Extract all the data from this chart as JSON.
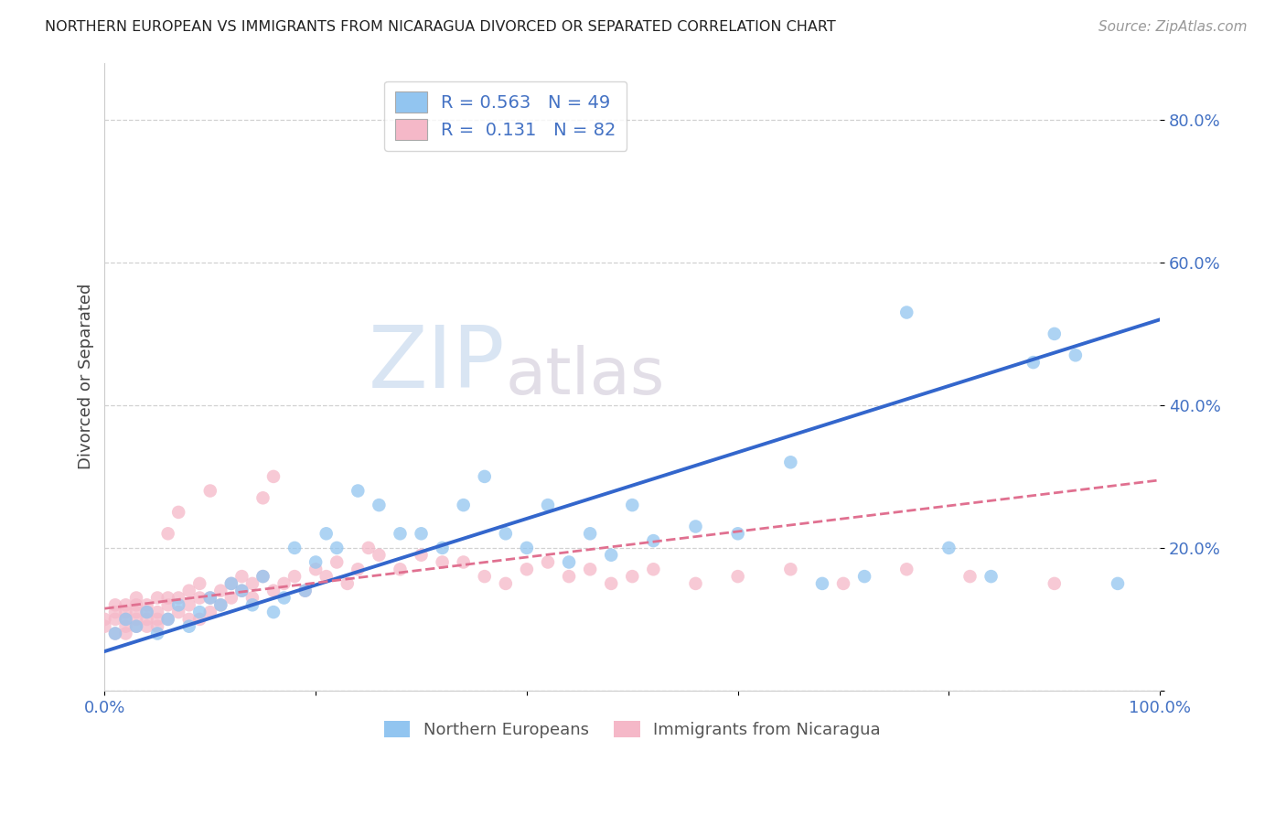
{
  "title": "NORTHERN EUROPEAN VS IMMIGRANTS FROM NICARAGUA DIVORCED OR SEPARATED CORRELATION CHART",
  "source": "Source: ZipAtlas.com",
  "ylabel": "Divorced or Separated",
  "xlim": [
    0,
    1.0
  ],
  "ylim": [
    0,
    0.88
  ],
  "x_tick_positions": [
    0.0,
    0.2,
    0.4,
    0.6,
    0.8,
    1.0
  ],
  "x_tick_labels": [
    "0.0%",
    "",
    "",
    "",
    "",
    "100.0%"
  ],
  "y_tick_positions": [
    0.0,
    0.2,
    0.4,
    0.6,
    0.8
  ],
  "y_tick_labels": [
    "",
    "20.0%",
    "40.0%",
    "60.0%",
    "80.0%"
  ],
  "blue_R": 0.563,
  "blue_N": 49,
  "pink_R": 0.131,
  "pink_N": 82,
  "blue_color": "#92C5F0",
  "pink_color": "#F5B8C8",
  "blue_line_color": "#3366CC",
  "pink_line_color": "#E07090",
  "tick_color": "#4472C4",
  "legend_text_color": "#4472C4",
  "watermark_zip_color": "#C8D8EE",
  "watermark_atlas_color": "#D4C8D4",
  "blue_line_start_y": 0.055,
  "blue_line_end_y": 0.52,
  "pink_line_start_y": 0.115,
  "pink_line_end_y": 0.295,
  "blue_x": [
    0.01,
    0.02,
    0.03,
    0.04,
    0.05,
    0.06,
    0.07,
    0.08,
    0.09,
    0.1,
    0.11,
    0.12,
    0.13,
    0.14,
    0.15,
    0.16,
    0.17,
    0.18,
    0.19,
    0.2,
    0.21,
    0.22,
    0.24,
    0.26,
    0.28,
    0.3,
    0.32,
    0.34,
    0.36,
    0.38,
    0.4,
    0.42,
    0.44,
    0.46,
    0.48,
    0.5,
    0.52,
    0.56,
    0.6,
    0.65,
    0.68,
    0.72,
    0.76,
    0.8,
    0.84,
    0.88,
    0.9,
    0.92,
    0.96
  ],
  "blue_y": [
    0.08,
    0.1,
    0.09,
    0.11,
    0.08,
    0.1,
    0.12,
    0.09,
    0.11,
    0.13,
    0.12,
    0.15,
    0.14,
    0.12,
    0.16,
    0.11,
    0.13,
    0.2,
    0.14,
    0.18,
    0.22,
    0.2,
    0.28,
    0.26,
    0.22,
    0.22,
    0.2,
    0.26,
    0.3,
    0.22,
    0.2,
    0.26,
    0.18,
    0.22,
    0.19,
    0.26,
    0.21,
    0.23,
    0.22,
    0.32,
    0.15,
    0.16,
    0.53,
    0.2,
    0.16,
    0.46,
    0.5,
    0.47,
    0.15
  ],
  "pink_x": [
    0.0,
    0.0,
    0.01,
    0.01,
    0.01,
    0.01,
    0.02,
    0.02,
    0.02,
    0.02,
    0.02,
    0.03,
    0.03,
    0.03,
    0.03,
    0.03,
    0.04,
    0.04,
    0.04,
    0.04,
    0.05,
    0.05,
    0.05,
    0.05,
    0.06,
    0.06,
    0.06,
    0.06,
    0.07,
    0.07,
    0.07,
    0.08,
    0.08,
    0.08,
    0.09,
    0.09,
    0.09,
    0.1,
    0.1,
    0.1,
    0.11,
    0.11,
    0.12,
    0.12,
    0.13,
    0.13,
    0.14,
    0.14,
    0.15,
    0.15,
    0.16,
    0.16,
    0.17,
    0.18,
    0.19,
    0.2,
    0.21,
    0.22,
    0.23,
    0.24,
    0.25,
    0.26,
    0.28,
    0.3,
    0.32,
    0.34,
    0.36,
    0.38,
    0.4,
    0.42,
    0.44,
    0.46,
    0.48,
    0.5,
    0.52,
    0.56,
    0.6,
    0.65,
    0.7,
    0.76,
    0.82,
    0.9
  ],
  "pink_y": [
    0.1,
    0.09,
    0.11,
    0.08,
    0.12,
    0.1,
    0.11,
    0.09,
    0.12,
    0.1,
    0.08,
    0.11,
    0.09,
    0.12,
    0.1,
    0.13,
    0.11,
    0.09,
    0.12,
    0.1,
    0.11,
    0.13,
    0.09,
    0.1,
    0.22,
    0.12,
    0.1,
    0.13,
    0.25,
    0.11,
    0.13,
    0.14,
    0.12,
    0.1,
    0.15,
    0.13,
    0.1,
    0.28,
    0.13,
    0.11,
    0.14,
    0.12,
    0.15,
    0.13,
    0.16,
    0.14,
    0.15,
    0.13,
    0.27,
    0.16,
    0.3,
    0.14,
    0.15,
    0.16,
    0.14,
    0.17,
    0.16,
    0.18,
    0.15,
    0.17,
    0.2,
    0.19,
    0.17,
    0.19,
    0.18,
    0.18,
    0.16,
    0.15,
    0.17,
    0.18,
    0.16,
    0.17,
    0.15,
    0.16,
    0.17,
    0.15,
    0.16,
    0.17,
    0.15,
    0.17,
    0.16,
    0.15
  ]
}
